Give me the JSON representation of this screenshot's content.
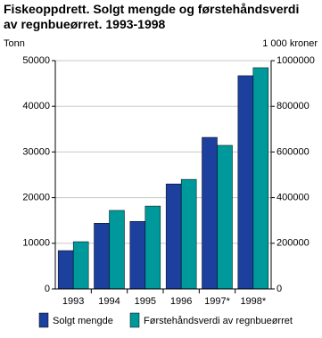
{
  "chart_data": {
    "type": "bar",
    "title": "Fiskeoppdrett. Solgt mengde og førstehåndsverdi av regnbueørret. 1993-1998",
    "ylabel": "Tonn",
    "y2label": "1 000 kroner",
    "categories": [
      "1993",
      "1994",
      "1995",
      "1996",
      "1997*",
      "1998*"
    ],
    "series": [
      {
        "name": "Solgt mengde",
        "color": "#1d3f9e",
        "values": [
          8400,
          14400,
          14800,
          23000,
          33200,
          46700
        ]
      },
      {
        "name": "Førstehåndsverdi av regnbueørret",
        "color": "#00999b",
        "axis": "y2",
        "values": [
          207000,
          344000,
          363000,
          480000,
          629000,
          969000
        ]
      }
    ],
    "ylim": [
      0,
      50000
    ],
    "yticks": [
      0,
      10000,
      20000,
      30000,
      40000,
      50000
    ],
    "y2lim": [
      0,
      1000000
    ],
    "y2ticks": [
      0,
      200000,
      400000,
      600000,
      800000,
      1000000
    ],
    "grid": true
  }
}
